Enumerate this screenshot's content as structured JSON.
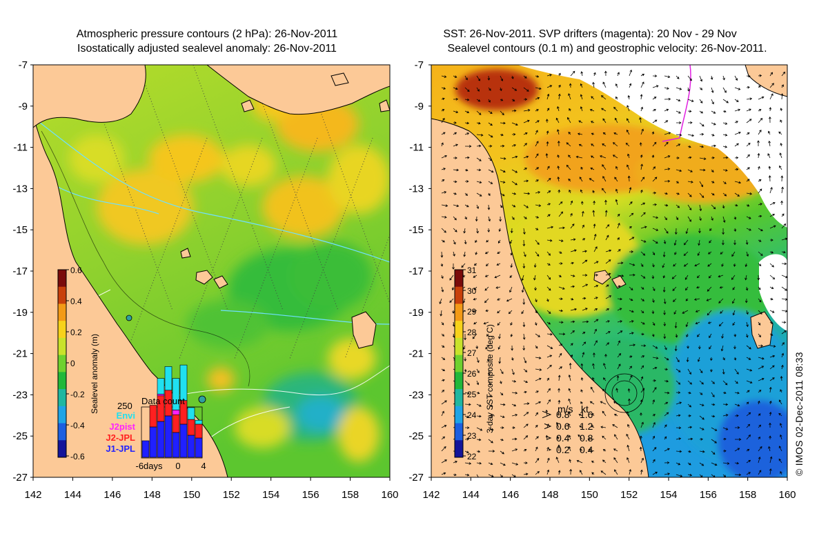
{
  "left_panel": {
    "title_line1": "Atmospheric pressure contours (2 hPa): 26-Nov-2011",
    "title_line2": "Isostatically adjusted sealevel anomaly: 26-Nov-2011",
    "colorbar": {
      "label": "Sealevel anomaly (m)",
      "ticks": [
        "0.6",
        "0.4",
        "0.2",
        "0",
        "-0.2",
        "-0.4",
        "-0.6"
      ],
      "colors": [
        "#7a0b0b",
        "#c8400b",
        "#f39a16",
        "#f7d21a",
        "#c9e22a",
        "#6fd12e",
        "#22b83a",
        "#1fb7a0",
        "#1ea4e6",
        "#1c5fe0",
        "#14149a"
      ]
    },
    "inset": {
      "title": "Data count",
      "max_label": "250",
      "legend": [
        {
          "name": "Envi",
          "color": "#20e0f0"
        },
        {
          "name": "J2pist",
          "color": "#ff20ff"
        },
        {
          "name": "J2-JPL",
          "color": "#ff2020"
        },
        {
          "name": "J1-JPL",
          "color": "#2020ff"
        }
      ],
      "x_labels": [
        "-6days",
        "0",
        "4"
      ],
      "bars": [
        {
          "j1": 60,
          "j2": 0,
          "j2p": 0,
          "envi": 0
        },
        {
          "j1": 110,
          "j2": 110,
          "j2p": 0,
          "envi": 0
        },
        {
          "j1": 130,
          "j2": 130,
          "j2p": 10,
          "envi": 40
        },
        {
          "j1": 150,
          "j2": 130,
          "j2p": 0,
          "envi": 60
        },
        {
          "j1": 90,
          "j2": 90,
          "j2p": 30,
          "envi": 80
        },
        {
          "j1": 120,
          "j2": 120,
          "j2p": 0,
          "envi": 90
        },
        {
          "j1": 80,
          "j2": 80,
          "j2p": 0,
          "envi": 30
        },
        {
          "j1": 70,
          "j2": 70,
          "j2p": 0,
          "envi": 10
        }
      ]
    }
  },
  "right_panel": {
    "title_line1": "SST: 26-Nov-2011. SVP drifters (magenta): 20 Nov - 29 Nov",
    "title_line2": "Sealevel contours (0.1 m) and geostrophic velocity: 26-Nov-2011.",
    "colorbar": {
      "label": "3-day SST composite (deg C)",
      "ticks": [
        "31",
        "30",
        "29",
        "28",
        "27",
        "26",
        "25",
        "24",
        "23",
        "22"
      ],
      "colors": [
        "#7a0b0b",
        "#c8400b",
        "#f39a16",
        "#f7d21a",
        "#c9e22a",
        "#6fd12e",
        "#22b83a",
        "#1fb7a0",
        "#1ea4e6",
        "#1c5fe0",
        "#14149a"
      ]
    },
    "velocity_legend": {
      "header_ms": "m/s",
      "header_kt": "kt",
      "rows": [
        {
          "ms": "0.8",
          "kt": "1.6"
        },
        {
          "ms": "0.6",
          "kt": "1.2"
        },
        {
          "ms": "0.4",
          "kt": "0.8"
        },
        {
          "ms": "0.2",
          "kt": "0.4"
        }
      ]
    }
  },
  "axes": {
    "lat_labels": [
      "-7",
      "-9",
      "-11",
      "-13",
      "-15",
      "-17",
      "-19",
      "-21",
      "-23",
      "-25",
      "-27"
    ],
    "lon_labels": [
      "142",
      "144",
      "146",
      "148",
      "150",
      "152",
      "154",
      "156",
      "158",
      "160"
    ]
  },
  "colors": {
    "land": "#fcc997",
    "ocean_base": "#95d12e",
    "coastline": "#000000"
  },
  "copyright": "© IMOS 02-Dec-2011 08:33"
}
